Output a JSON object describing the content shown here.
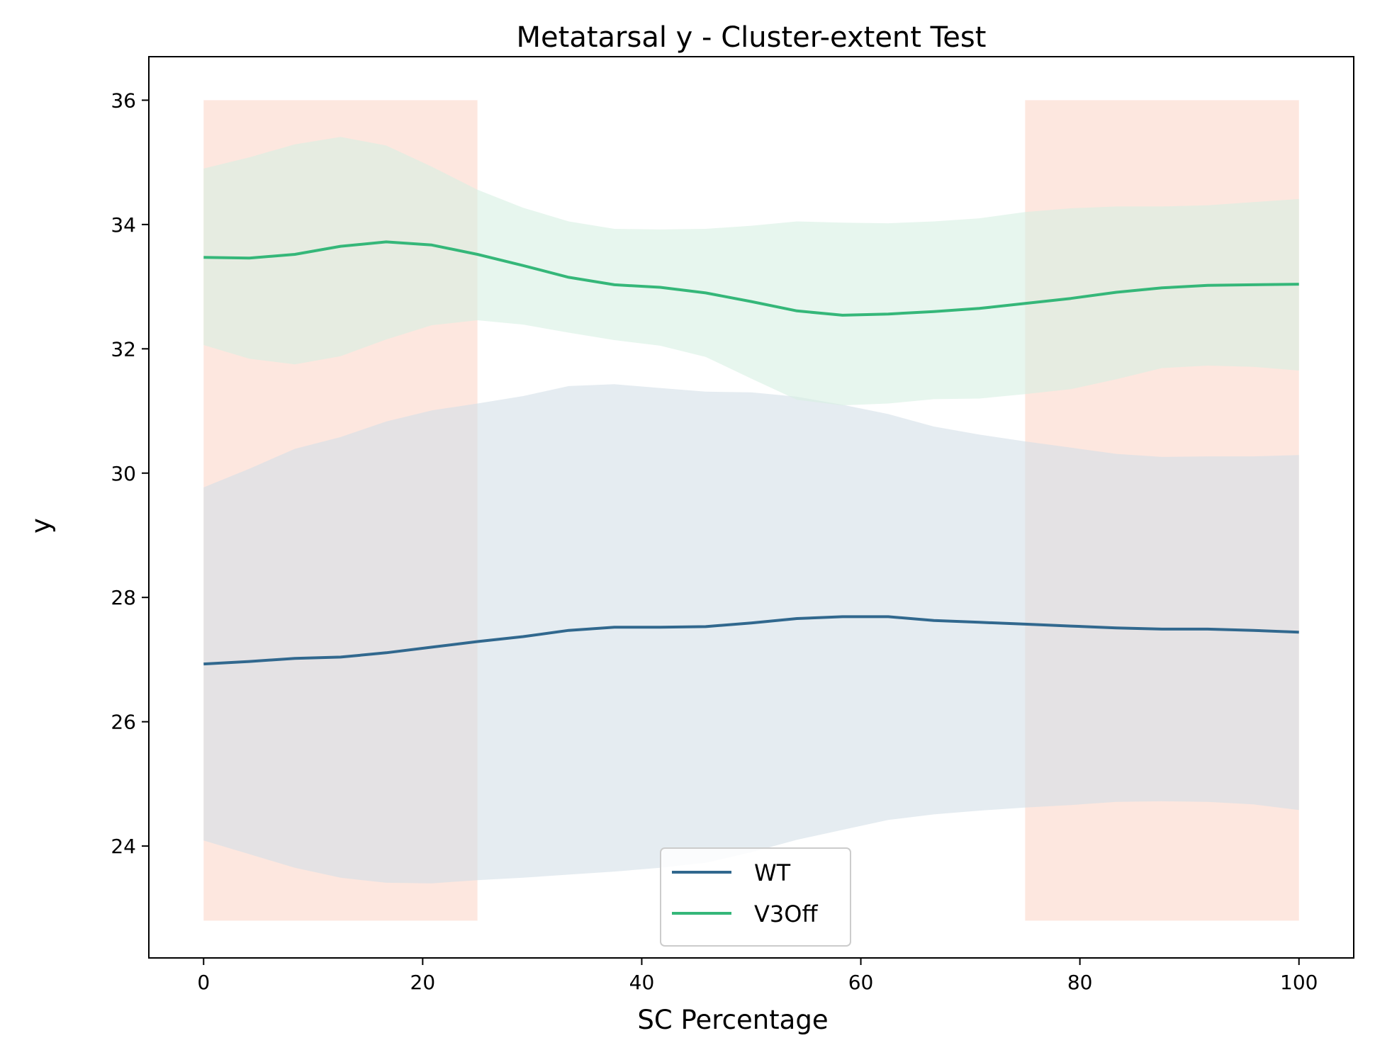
{
  "chart_data": {
    "type": "line",
    "title": "Metatarsal y - Cluster-extent Test",
    "xlabel": "SC Percentage",
    "ylabel": "y",
    "xlim": [
      -5,
      105
    ],
    "ylim": [
      22.2,
      36.7
    ],
    "xticks": [
      0,
      20,
      40,
      60,
      80,
      100
    ],
    "yticks": [
      24,
      26,
      28,
      30,
      32,
      34,
      36
    ],
    "grid": false,
    "legend_position": "lower-center",
    "significant_regions": [
      {
        "x_start": 0,
        "x_end": 25,
        "y_bottom": 22.8,
        "y_top": 36.0,
        "color": "#fde3d9"
      },
      {
        "x_start": 75,
        "x_end": 100,
        "y_bottom": 22.8,
        "y_top": 36.0,
        "color": "#fde3d9"
      }
    ],
    "x": [
      0,
      4.17,
      8.33,
      12.5,
      16.67,
      20.83,
      25,
      29.17,
      33.33,
      37.5,
      41.67,
      45.83,
      50,
      54.17,
      58.33,
      62.5,
      66.67,
      70.83,
      75,
      79.17,
      83.33,
      87.5,
      91.67,
      95.83,
      100
    ],
    "series": [
      {
        "name": "WT",
        "color": "#31688e",
        "band_color": "#d4dfe7",
        "values": [
          26.93,
          26.97,
          27.02,
          27.04,
          27.11,
          27.2,
          27.29,
          27.37,
          27.47,
          27.52,
          27.52,
          27.53,
          27.59,
          27.66,
          27.69,
          27.69,
          27.63,
          27.6,
          27.57,
          27.54,
          27.51,
          27.49,
          27.49,
          27.47,
          27.44
        ],
        "upper": [
          29.77,
          30.07,
          30.39,
          30.58,
          30.83,
          31.01,
          31.12,
          31.24,
          31.4,
          31.43,
          31.37,
          31.31,
          31.3,
          31.23,
          31.1,
          30.95,
          30.75,
          30.62,
          30.51,
          30.41,
          30.31,
          30.26,
          30.27,
          30.27,
          30.29
        ],
        "lower": [
          24.09,
          23.87,
          23.65,
          23.49,
          23.41,
          23.4,
          23.45,
          23.49,
          23.54,
          23.59,
          23.65,
          23.73,
          23.9,
          24.1,
          24.26,
          24.42,
          24.51,
          24.57,
          24.62,
          24.66,
          24.71,
          24.72,
          24.71,
          24.67,
          24.58
        ]
      },
      {
        "name": "V3Off",
        "color": "#35b779",
        "band_color": "#d7f0e3",
        "values": [
          33.47,
          33.46,
          33.52,
          33.65,
          33.72,
          33.67,
          33.52,
          33.34,
          33.15,
          33.03,
          32.99,
          32.9,
          32.76,
          32.61,
          32.54,
          32.56,
          32.6,
          32.65,
          32.73,
          32.81,
          32.91,
          32.98,
          33.02,
          33.03,
          33.04
        ],
        "upper": [
          34.9,
          35.08,
          35.29,
          35.41,
          35.27,
          34.93,
          34.56,
          34.27,
          34.05,
          33.93,
          33.92,
          33.93,
          33.98,
          34.05,
          34.03,
          34.02,
          34.05,
          34.1,
          34.2,
          34.26,
          34.29,
          34.29,
          34.31,
          34.36,
          34.41
        ],
        "lower": [
          32.06,
          31.84,
          31.75,
          31.88,
          32.15,
          32.38,
          32.46,
          32.39,
          32.26,
          32.14,
          32.05,
          31.87,
          31.52,
          31.18,
          31.09,
          31.12,
          31.19,
          31.2,
          31.27,
          31.35,
          31.51,
          31.69,
          31.73,
          31.71,
          31.65
        ]
      }
    ]
  }
}
